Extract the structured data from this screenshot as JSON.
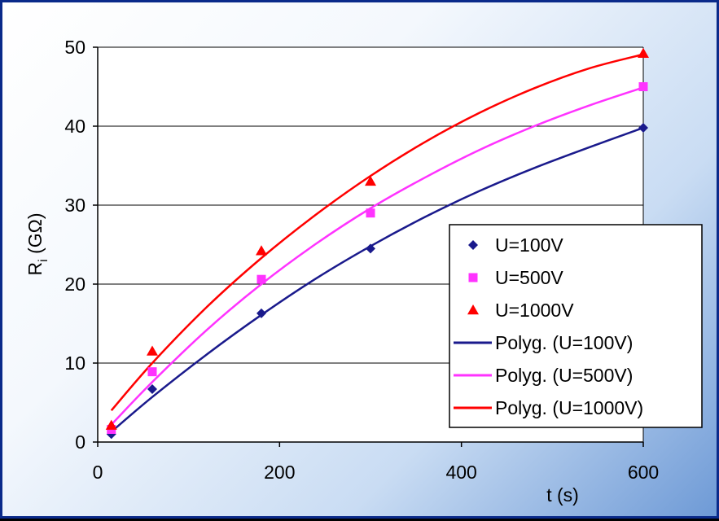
{
  "chart_data": {
    "type": "scatter",
    "x_label": "t (s)",
    "y_label_main": "R",
    "y_label_sub": "i",
    "y_label_unit": " (GΩ)",
    "xlim": [
      0,
      600
    ],
    "ylim": [
      0,
      50
    ],
    "x_ticks": [
      0,
      200,
      400,
      600
    ],
    "y_ticks": [
      0,
      10,
      20,
      30,
      40,
      50
    ],
    "grid": "horizontal",
    "legend_position": "right-middle",
    "series": [
      {
        "name": "U=100V",
        "marker": "diamond",
        "color": "#1a1a8c",
        "points": [
          [
            15,
            1.0
          ],
          [
            60,
            6.7
          ],
          [
            180,
            16.3
          ],
          [
            300,
            24.5
          ],
          [
            600,
            39.8
          ]
        ]
      },
      {
        "name": "U=500V",
        "marker": "square",
        "color": "#ff33ff",
        "points": [
          [
            15,
            1.6
          ],
          [
            60,
            8.9
          ],
          [
            180,
            20.6
          ],
          [
            300,
            29.0
          ],
          [
            600,
            45.0
          ]
        ]
      },
      {
        "name": "U=1000V",
        "marker": "triangle",
        "color": "#ff0000",
        "points": [
          [
            15,
            2.1
          ],
          [
            60,
            11.5
          ],
          [
            180,
            24.2
          ],
          [
            300,
            33.0
          ],
          [
            600,
            49.2
          ]
        ]
      }
    ],
    "trendlines": [
      {
        "name": "Polyg. (U=100V)",
        "color": "#1a1a8c",
        "points": [
          [
            15,
            1.3
          ],
          [
            60,
            5.7
          ],
          [
            120,
            11.1
          ],
          [
            180,
            16.1
          ],
          [
            240,
            20.7
          ],
          [
            300,
            24.8
          ],
          [
            360,
            28.5
          ],
          [
            420,
            31.8
          ],
          [
            480,
            34.7
          ],
          [
            540,
            37.3
          ],
          [
            600,
            39.8
          ]
        ]
      },
      {
        "name": "Polyg. (U=500V)",
        "color": "#ff33ff",
        "points": [
          [
            15,
            2.2
          ],
          [
            60,
            7.6
          ],
          [
            120,
            14.2
          ],
          [
            180,
            20.0
          ],
          [
            240,
            25.1
          ],
          [
            300,
            29.6
          ],
          [
            360,
            33.5
          ],
          [
            420,
            37.0
          ],
          [
            480,
            40.0
          ],
          [
            540,
            42.6
          ],
          [
            600,
            44.9
          ]
        ]
      },
      {
        "name": "Polyg. (U=1000V)",
        "color": "#ff0000",
        "points": [
          [
            15,
            4.0
          ],
          [
            60,
            10.0
          ],
          [
            120,
            17.1
          ],
          [
            180,
            23.3
          ],
          [
            240,
            28.8
          ],
          [
            300,
            33.7
          ],
          [
            360,
            38.0
          ],
          [
            420,
            41.7
          ],
          [
            480,
            44.8
          ],
          [
            540,
            47.3
          ],
          [
            600,
            49.1
          ]
        ]
      }
    ]
  }
}
